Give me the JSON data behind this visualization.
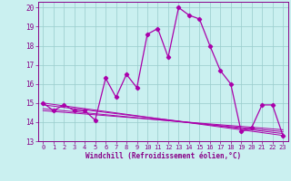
{
  "xlabel": "Windchill (Refroidissement éolien,°C)",
  "background_color": "#caf0f0",
  "line_color": "#aa00aa",
  "grid_color": "#99cccc",
  "xlim": [
    -0.5,
    23.5
  ],
  "ylim": [
    13,
    20.3
  ],
  "yticks": [
    13,
    14,
    15,
    16,
    17,
    18,
    19,
    20
  ],
  "xticks": [
    0,
    1,
    2,
    3,
    4,
    5,
    6,
    7,
    8,
    9,
    10,
    11,
    12,
    13,
    14,
    15,
    16,
    17,
    18,
    19,
    20,
    21,
    22,
    23
  ],
  "series1": {
    "x": [
      0,
      1,
      2,
      3,
      4,
      5,
      6,
      7,
      8,
      9,
      10,
      11,
      12,
      13,
      14,
      15,
      16,
      17,
      18,
      19,
      20,
      21,
      22,
      23
    ],
    "y": [
      15.0,
      14.6,
      14.9,
      14.6,
      14.6,
      14.1,
      16.3,
      15.3,
      16.5,
      15.8,
      18.6,
      18.9,
      17.4,
      20.0,
      19.6,
      19.4,
      18.0,
      16.7,
      16.0,
      13.5,
      13.7,
      14.9,
      14.9,
      13.3
    ]
  },
  "trend_lines": [
    {
      "x": [
        0,
        23
      ],
      "y": [
        15.0,
        13.3
      ]
    },
    {
      "x": [
        0,
        23
      ],
      "y": [
        14.9,
        13.4
      ]
    },
    {
      "x": [
        0,
        23
      ],
      "y": [
        14.7,
        13.5
      ]
    },
    {
      "x": [
        0,
        23
      ],
      "y": [
        14.6,
        13.6
      ]
    }
  ]
}
